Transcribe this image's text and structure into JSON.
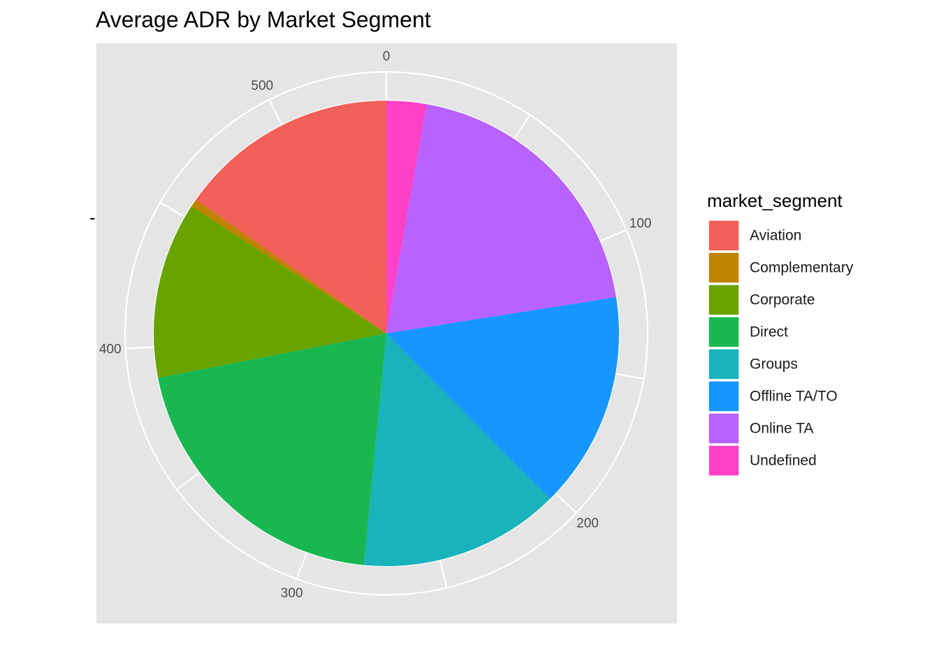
{
  "chart_data": {
    "type": "pie",
    "title": "Average ADR by Market Segment",
    "ylabel": "-",
    "legend_title": "market_segment",
    "legend_position": "right",
    "axis_ticks": [
      "0",
      "100",
      "200",
      "300",
      "400",
      "500"
    ],
    "axis_tick_values": [
      0,
      100,
      200,
      300,
      400,
      500
    ],
    "axis_max": 540,
    "grid": true,
    "slices": [
      {
        "name": "Undefined",
        "value": 15.0,
        "color": "#FF41C8"
      },
      {
        "name": "Online TA",
        "value": 106.6,
        "color": "#B862FF"
      },
      {
        "name": "Offline TA/TO",
        "value": 81.4,
        "color": "#1597FF"
      },
      {
        "name": "Groups",
        "value": 75.3,
        "color": "#19B3BB"
      },
      {
        "name": "Direct",
        "value": 110.2,
        "color": "#19B752"
      },
      {
        "name": "Corporate",
        "value": 66.2,
        "color": "#69A300"
      },
      {
        "name": "Complementary",
        "value": 2.9,
        "color": "#C08300"
      },
      {
        "name": "Aviation",
        "value": 82.4,
        "color": "#F2605A"
      }
    ],
    "legend_order": [
      "Aviation",
      "Complementary",
      "Corporate",
      "Direct",
      "Groups",
      "Offline TA/TO",
      "Online TA",
      "Undefined"
    ]
  }
}
